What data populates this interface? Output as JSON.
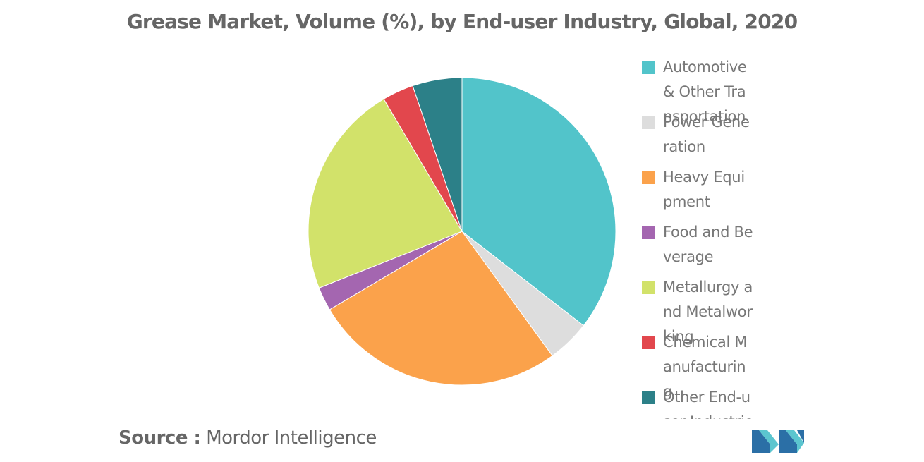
{
  "chart_data": {
    "type": "pie",
    "title": "Grease Market, Volume (%), by End-user Industry, Global, 2020",
    "legend_position": "right",
    "slices": [
      {
        "label": "Automotive & Other Transportation",
        "value": 35.5,
        "color": "#52C4CA"
      },
      {
        "label": "Power Generation",
        "value": 4.5,
        "color": "#DDDDDD"
      },
      {
        "label": "Heavy Equipment",
        "value": 26.5,
        "color": "#FBA24B"
      },
      {
        "label": "Food and Beverage",
        "value": 2.5,
        "color": "#A466B0"
      },
      {
        "label": "Metallurgy and Metalworking",
        "value": 22.5,
        "color": "#D2E26A"
      },
      {
        "label": "Chemical Manufacturing",
        "value": 3.3,
        "color": "#E2474D"
      },
      {
        "label": "Other End-user Industries",
        "value": 5.2,
        "color": "#2C8088"
      }
    ]
  },
  "source": {
    "prefix": "Source :",
    "name": "Mordor Intelligence"
  },
  "logo": {
    "brand": "Mordor Intelligence logo"
  }
}
